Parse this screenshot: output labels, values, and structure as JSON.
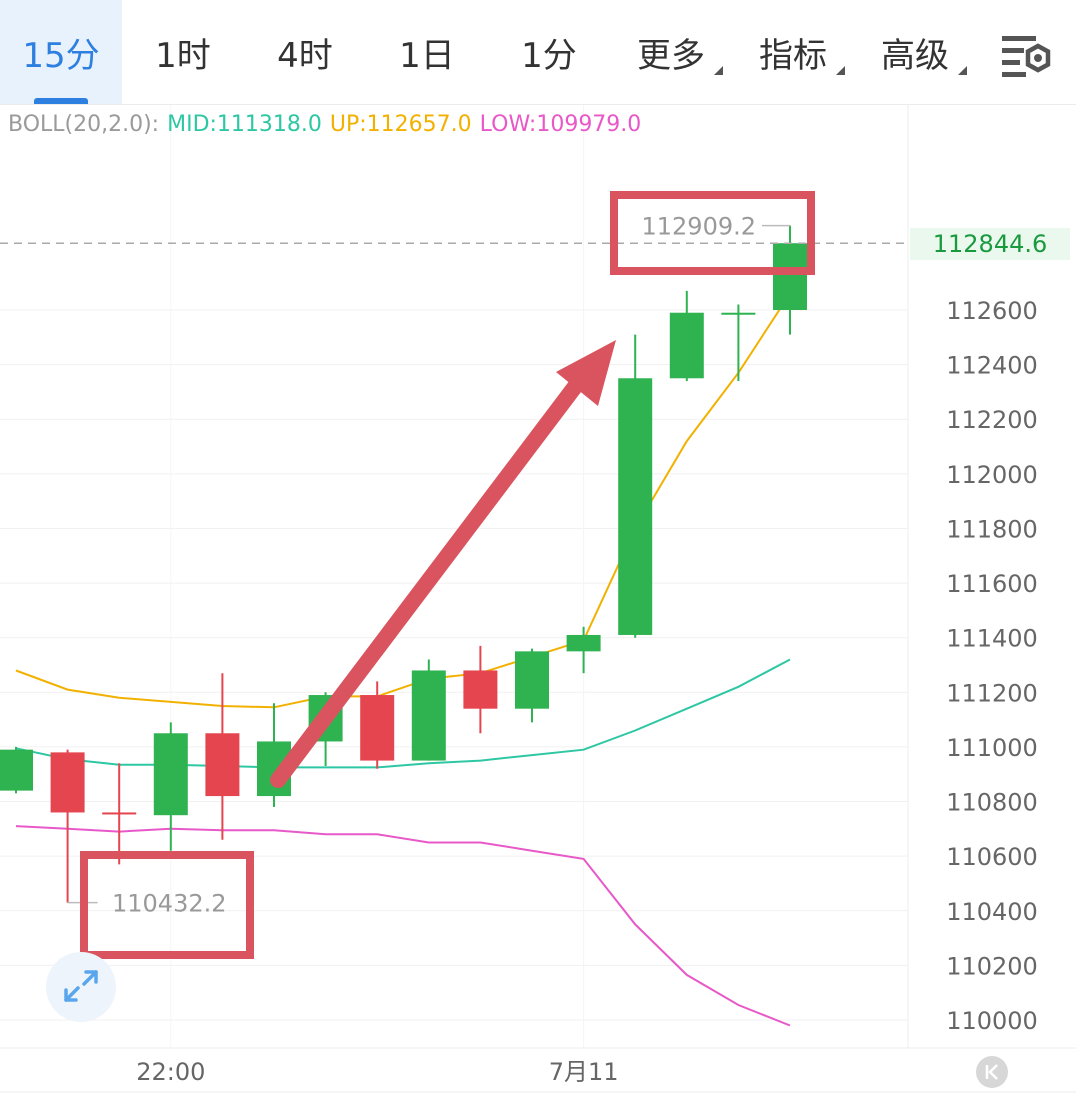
{
  "tabs": [
    {
      "label": "15分",
      "active": true
    },
    {
      "label": "1时"
    },
    {
      "label": "4时"
    },
    {
      "label": "1日"
    },
    {
      "label": "1分"
    },
    {
      "label": "更多",
      "dropdown": true
    },
    {
      "label": "指标",
      "dropdown": true
    },
    {
      "label": "高级",
      "dropdown": true
    }
  ],
  "settings_icon": "chart-settings-icon",
  "indicator": {
    "name": "BOLL(20,2.0):",
    "mid": "MID:111318.0",
    "up": "UP:112657.0",
    "low": "LOW:109979.0",
    "colors": {
      "name": "#9a9a9a",
      "mid": "#2ec7a3",
      "up": "#f2b100",
      "low": "#e858c8"
    }
  },
  "current_price": "112844.6",
  "annotations": {
    "high_label": "112909.2",
    "low_label": "110432.2"
  },
  "colors": {
    "up": "#2fb351",
    "down": "#e4454f",
    "annotation": "#d9545e",
    "accent": "#2d7fe0"
  },
  "expand_icon": "expand-arrows-icon",
  "scroll_latest_icon": "scroll-to-latest-icon",
  "chart_data": {
    "type": "candlestick",
    "yticks": [
      110000,
      110200,
      110400,
      110600,
      110800,
      111000,
      111200,
      111400,
      111600,
      111800,
      112000,
      112200,
      112400,
      112600
    ],
    "ylim": [
      109900,
      113100
    ],
    "xticks": [
      {
        "label": "22:00",
        "index": 3
      },
      {
        "label": "7月11",
        "index": 11
      }
    ],
    "candles": [
      {
        "open": 110840,
        "close": 110990,
        "high": 111000,
        "low": 110830
      },
      {
        "open": 110980,
        "close": 110760,
        "high": 110990,
        "low": 110430
      },
      {
        "open": 110760,
        "close": 110755,
        "high": 110940,
        "low": 110570
      },
      {
        "open": 110750,
        "close": 111050,
        "high": 111090,
        "low": 110620
      },
      {
        "open": 111050,
        "close": 110820,
        "high": 111270,
        "low": 110660
      },
      {
        "open": 110820,
        "close": 111020,
        "high": 111160,
        "low": 110780
      },
      {
        "open": 111020,
        "close": 111190,
        "high": 111200,
        "low": 110930
      },
      {
        "open": 111190,
        "close": 110950,
        "high": 111240,
        "low": 110920
      },
      {
        "open": 110950,
        "close": 111280,
        "high": 111320,
        "low": 110950
      },
      {
        "open": 111280,
        "close": 111140,
        "high": 111370,
        "low": 111050
      },
      {
        "open": 111140,
        "close": 111350,
        "high": 111360,
        "low": 111090
      },
      {
        "open": 111350,
        "close": 111410,
        "high": 111440,
        "low": 111270
      },
      {
        "open": 111410,
        "close": 112350,
        "high": 112510,
        "low": 111400
      },
      {
        "open": 112350,
        "close": 112590,
        "high": 112670,
        "low": 112340
      },
      {
        "open": 112590,
        "close": 112590,
        "high": 112620,
        "low": 112340
      },
      {
        "open": 112600,
        "close": 112844.6,
        "high": 112909.2,
        "low": 112510
      }
    ],
    "series": [
      {
        "name": "UP",
        "color": "#f2b100",
        "values": [
          111280,
          111210,
          111180,
          111165,
          111150,
          111145,
          111185,
          111185,
          111250,
          111270,
          111330,
          111390,
          111800,
          112120,
          112370,
          112660
        ]
      },
      {
        "name": "MID",
        "color": "#2ec7a3",
        "values": [
          110995,
          110955,
          110935,
          110935,
          110930,
          110925,
          110925,
          110925,
          110940,
          110950,
          110970,
          110990,
          111060,
          111140,
          111220,
          111320
        ]
      },
      {
        "name": "LOW",
        "color": "#e858c8",
        "values": [
          110710,
          110700,
          110690,
          110700,
          110695,
          110695,
          110680,
          110680,
          110650,
          110650,
          110620,
          110590,
          110350,
          110165,
          110055,
          109980
        ]
      }
    ]
  }
}
